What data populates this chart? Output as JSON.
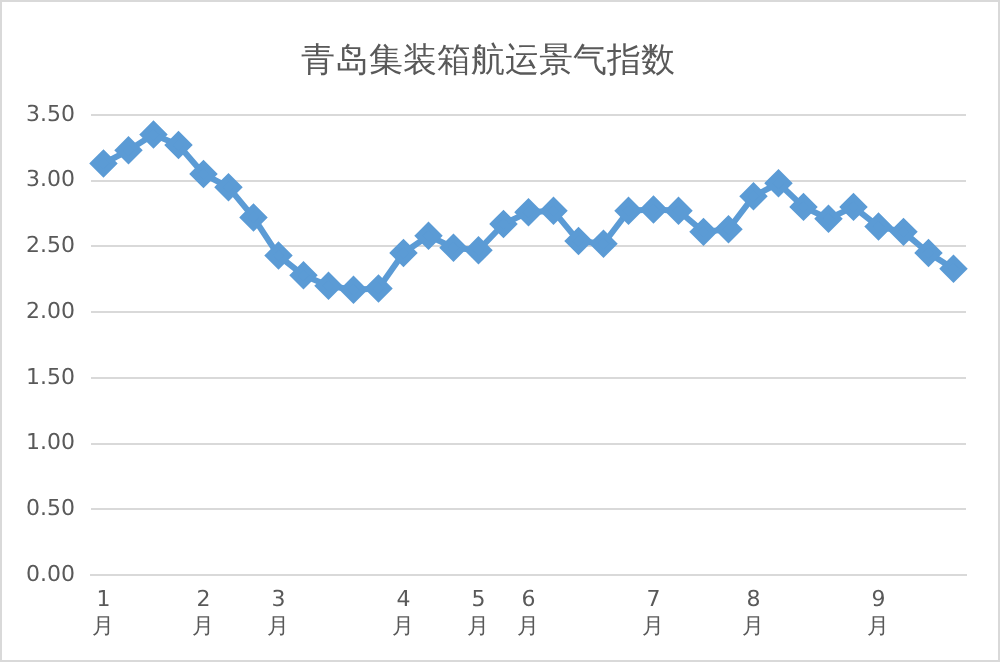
{
  "chart_data": {
    "type": "line",
    "title": "青岛集装箱航运景气指数",
    "categories": [
      "1月",
      null,
      null,
      null,
      "2月",
      null,
      null,
      "3月",
      null,
      null,
      null,
      null,
      "4月",
      null,
      null,
      "5月",
      null,
      "6月",
      null,
      null,
      null,
      null,
      "7月",
      null,
      null,
      null,
      "8月",
      null,
      null,
      null,
      null,
      "9月",
      null,
      null,
      null
    ],
    "series": [
      {
        "color": "#5b9bd5",
        "values": [
          3.13,
          3.23,
          3.35,
          3.27,
          3.05,
          2.95,
          2.72,
          2.43,
          2.28,
          2.2,
          2.17,
          2.18,
          2.45,
          2.58,
          2.49,
          2.47,
          2.67,
          2.76,
          2.77,
          2.54,
          2.52,
          2.77,
          2.78,
          2.77,
          2.61,
          2.63,
          2.88,
          2.98,
          2.8,
          2.71,
          2.8,
          2.65,
          2.61,
          2.45,
          2.33
        ]
      }
    ],
    "ylim": [
      0,
      3.5
    ],
    "yticks": [
      {
        "value": 0,
        "label": "0.00"
      },
      {
        "value": 0.5,
        "label": "0.50"
      },
      {
        "value": 1,
        "label": "1.00"
      },
      {
        "value": 1.5,
        "label": "1.50"
      },
      {
        "value": 2,
        "label": "2.00"
      },
      {
        "value": 2.5,
        "label": "2.50"
      },
      {
        "value": 3,
        "label": "3.00"
      },
      {
        "value": 3.5,
        "label": "3.50"
      }
    ],
    "grid": "y",
    "marker": "diamond",
    "line_style": "solid"
  }
}
